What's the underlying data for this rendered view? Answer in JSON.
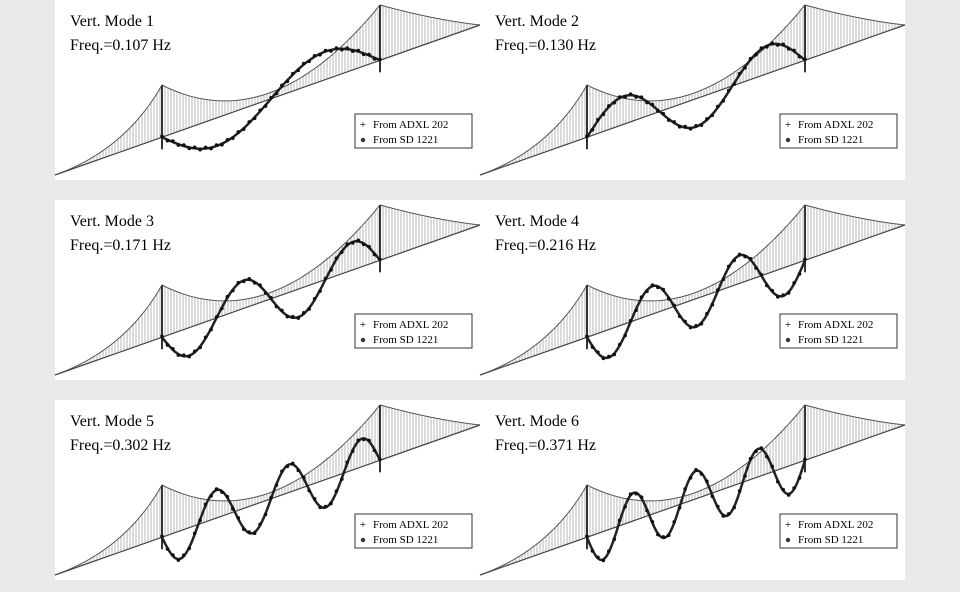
{
  "panels": [
    {
      "title": "Vert. Mode 1",
      "frequency": "Freq.=0.107 Hz",
      "legend": [
        "From ADXL 202",
        "From SD 1221"
      ]
    },
    {
      "title": "Vert. Mode 2",
      "frequency": "Freq.=0.130 Hz",
      "legend": [
        "From ADXL 202",
        "From SD 1221"
      ]
    },
    {
      "title": "Vert. Mode 3",
      "frequency": "Freq.=0.171 Hz",
      "legend": [
        "From ADXL 202",
        "From SD 1221"
      ]
    },
    {
      "title": "Vert. Mode 4",
      "frequency": "Freq.=0.216 Hz",
      "legend": [
        "From ADXL 202",
        "From SD 1221"
      ]
    },
    {
      "title": "Vert. Mode 5",
      "frequency": "Freq.=0.302 Hz",
      "legend": [
        "From ADXL 202",
        "From SD 1221"
      ]
    },
    {
      "title": "Vert. Mode 6",
      "frequency": "Freq.=0.371 Hz",
      "legend": [
        "From ADXL 202",
        "From SD 1221"
      ]
    }
  ]
}
